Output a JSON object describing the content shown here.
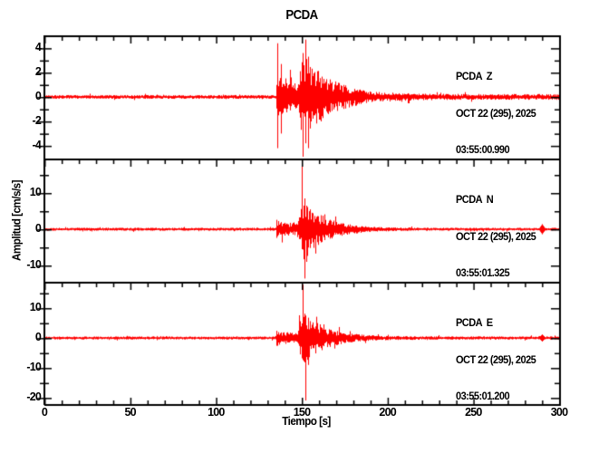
{
  "window": {
    "background": "#ffffff",
    "axis_color": "#000000"
  },
  "chart_data": {
    "type": "line",
    "subtype": "seismogram-3-component",
    "title": "PCDA",
    "xlabel": "Tiempo [s]",
    "ylabel": "Amplitud [cm/s/s]",
    "line_color": "#ff0000",
    "x_range": [
      0,
      300
    ],
    "x_major_ticks": [
      0,
      50,
      100,
      150,
      200,
      250,
      300
    ],
    "x_minor_step": 10,
    "grid": false,
    "legend_position": "inside-top-right-per-panel",
    "panels": [
      {
        "station": "PCDA",
        "component": "Z",
        "label_line1": "PCDA  Z",
        "label_line2": "OCT 22 (295), 2025",
        "label_line3": "03:55:00.990",
        "y_range": [
          -5.05,
          5.05
        ],
        "y_major_ticks": [
          -4,
          -2,
          0,
          2,
          4
        ],
        "y_minor_step": 1,
        "noise_amp": 0.13,
        "tail_noise_amp": 0.2,
        "p_arrival_s": 135,
        "p_amp": 1.9,
        "p_decay_s": 12,
        "s_arrival_s": 147,
        "s_amp": 3.1,
        "s_decay_s": 16,
        "spikes": [
          {
            "t": 136.2,
            "up": 4.4,
            "down": 4.2
          },
          {
            "t": 138.0,
            "up": 2.7,
            "down": 3.0
          },
          {
            "t": 150.6,
            "up": 3.6,
            "down": 4.9
          },
          {
            "t": 152.4,
            "up": 4.7,
            "down": 3.8
          },
          {
            "t": 154.0,
            "up": 3.3,
            "down": 4.2
          }
        ],
        "blip": null
      },
      {
        "station": "PCDA",
        "component": "N",
        "label_line1": "PCDA  N",
        "label_line2": "OCT 22 (295), 2025",
        "label_line3": "03:55:01.325",
        "y_range": [
          -14.5,
          19.5
        ],
        "y_major_ticks": [
          -10,
          0,
          10
        ],
        "y_minor_step": 5,
        "noise_amp": 0.35,
        "tail_noise_amp": 0.32,
        "p_arrival_s": 135,
        "p_amp": 1.8,
        "p_decay_s": 20,
        "s_arrival_s": 147,
        "s_amp": 8.5,
        "s_decay_s": 12,
        "spikes": [
          {
            "t": 135.7,
            "up": 2.6,
            "down": 2.4
          },
          {
            "t": 150.4,
            "up": 18.7,
            "down": 5.5
          },
          {
            "t": 151.6,
            "up": 8.5,
            "down": 13.6
          },
          {
            "t": 153.0,
            "up": 6.5,
            "down": 9.0
          }
        ],
        "blip": {
          "t": 290,
          "amp": 1.4
        }
      },
      {
        "station": "PCDA",
        "component": "E",
        "label_line1": "PCDA  E",
        "label_line2": "OCT 22 (295), 2025",
        "label_line3": "03:55:01.200",
        "y_range": [
          -22.4,
          18.8
        ],
        "y_major_ticks": [
          -20,
          -10,
          0,
          10
        ],
        "y_minor_step": 5,
        "noise_amp": 0.42,
        "tail_noise_amp": 0.45,
        "p_arrival_s": 135,
        "p_amp": 1.8,
        "p_decay_s": 20,
        "s_arrival_s": 147,
        "s_amp": 8.5,
        "s_decay_s": 12,
        "spikes": [
          {
            "t": 135.7,
            "up": 2.4,
            "down": 2.6
          },
          {
            "t": 150.9,
            "up": 17.8,
            "down": 6.0
          },
          {
            "t": 152.3,
            "up": 7.5,
            "down": 20.9
          },
          {
            "t": 154.0,
            "up": 6.0,
            "down": 9.0
          }
        ],
        "blip": {
          "t": 290,
          "amp": 1.2
        }
      }
    ]
  }
}
